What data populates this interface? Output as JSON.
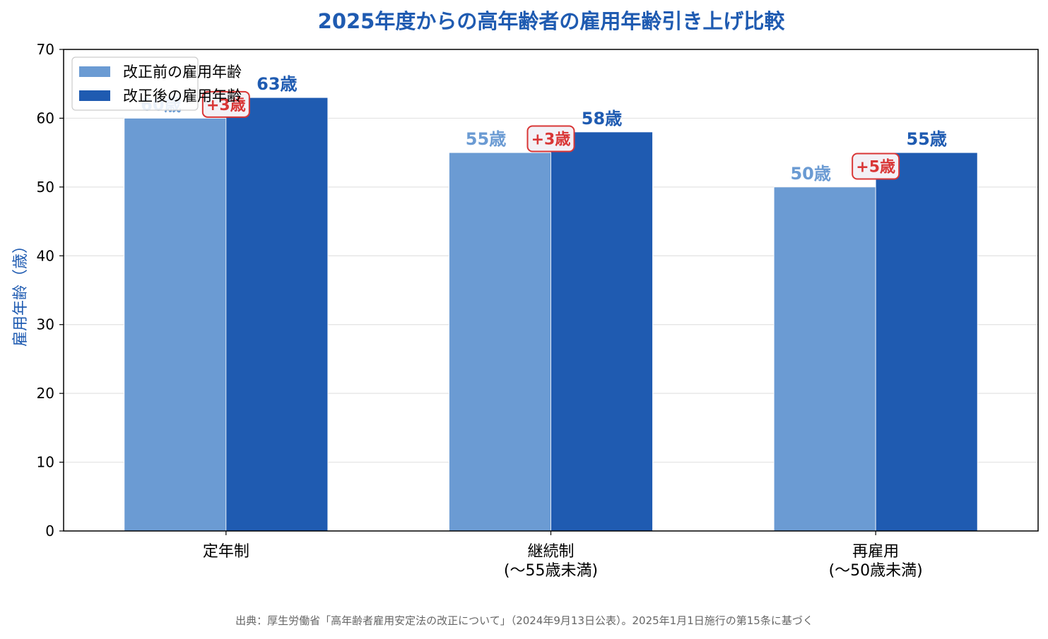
{
  "chart_data": {
    "type": "bar",
    "title": "2025年度からの高年齢者の雇用年齢引き上げ比較",
    "ylabel": "雇用年齢（歳）",
    "xlabel": "",
    "ylim": [
      0,
      70
    ],
    "y_ticks": [
      0,
      10,
      20,
      30,
      40,
      50,
      60,
      70
    ],
    "grid": true,
    "legend_position": "top-left",
    "categories": [
      {
        "line1": "定年制",
        "line2": ""
      },
      {
        "line1": "継続制",
        "line2": "(〜55歳未満)"
      },
      {
        "line1": "再雇用",
        "line2": "(〜50歳未満)"
      }
    ],
    "series": [
      {
        "name": "改正前の雇用年齢",
        "color": "#6b9bd3",
        "values": [
          60,
          55,
          50
        ],
        "labels": [
          "60歳",
          "55歳",
          "50歳"
        ]
      },
      {
        "name": "改正後の雇用年齢",
        "color": "#1f5bb1",
        "values": [
          63,
          58,
          55
        ],
        "labels": [
          "63歳",
          "58歳",
          "55歳"
        ]
      }
    ],
    "differences": [
      "+3歳",
      "+3歳",
      "+5歳"
    ],
    "annotation_color": "#d93636",
    "title_color": "#1f5bb1",
    "footnote": "出典：厚生労働省「高年齢者雇用安定法の改正について」（2024年9月13日公表）。2025年1月1日施行の第15条に基づく"
  }
}
